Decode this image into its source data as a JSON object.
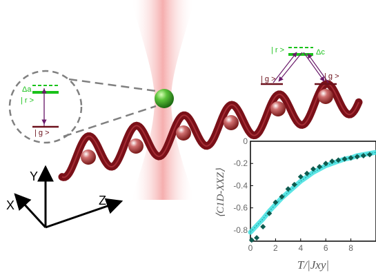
{
  "diagram": {
    "axes_labels": {
      "x": "X",
      "y": "Y",
      "z": "Z"
    },
    "zoom_inset": {
      "delta": "Δa",
      "rydberg": "| r >",
      "ground": "| g >"
    },
    "right_levels": {
      "delta": "Δc",
      "rydberg": "| r >",
      "ground_left": "| g >",
      "ground_right": "| g >"
    },
    "colors": {
      "lattice": "#7a1018",
      "beam": "#f08080",
      "atom_rydberg": "#3aa628",
      "atom_ground": "#b03a3a",
      "level_green": "#19c21a",
      "level_ground": "#6b0f1a",
      "transition_arrow": "#6a1a6a",
      "fit_band": "#40e0e0",
      "data_marker": "#0e5c50"
    }
  },
  "chart_data": {
    "type": "scatter",
    "ylabel": "⟨C1D-XXZ⟩",
    "xlabel": "T/|Jxy|",
    "xlim": [
      0,
      10
    ],
    "ylim": [
      -0.9,
      0
    ],
    "x_ticks": [
      0,
      2,
      4,
      6,
      8
    ],
    "y_ticks": [
      0,
      -0.2,
      -0.4,
      -0.6,
      -0.8
    ],
    "series": [
      {
        "marker": "diamond",
        "x": [
          0.1,
          0.5,
          1.0,
          1.5,
          2.0,
          2.5,
          3.0,
          3.5,
          4.0,
          4.5,
          5.0,
          5.5,
          6.0,
          6.5,
          7.0,
          7.5,
          8.0,
          8.5,
          9.0,
          9.5
        ],
        "y": [
          -0.89,
          -0.87,
          -0.77,
          -0.65,
          -0.55,
          -0.5,
          -0.43,
          -0.39,
          -0.32,
          -0.29,
          -0.25,
          -0.23,
          -0.2,
          -0.18,
          -0.17,
          -0.16,
          -0.15,
          -0.14,
          -0.13,
          -0.12
        ]
      },
      {
        "style": "band",
        "x": [
          0,
          0.5,
          1,
          1.5,
          2,
          2.5,
          3,
          3.5,
          4,
          4.5,
          5,
          5.5,
          6,
          6.5,
          7,
          7.5,
          8,
          8.5,
          9,
          9.5,
          10
        ],
        "y": [
          -0.82,
          -0.76,
          -0.7,
          -0.63,
          -0.57,
          -0.51,
          -0.46,
          -0.41,
          -0.36,
          -0.32,
          -0.28,
          -0.25,
          -0.22,
          -0.2,
          -0.18,
          -0.16,
          -0.15,
          -0.13,
          -0.12,
          -0.11,
          -0.1
        ]
      }
    ]
  }
}
